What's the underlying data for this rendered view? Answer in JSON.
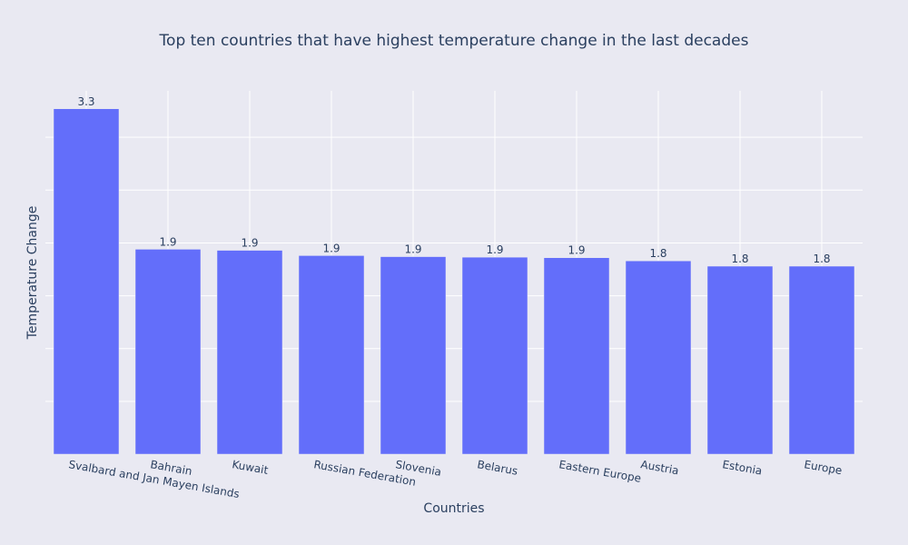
{
  "chart_data": {
    "type": "bar",
    "title": "Top ten countries that have highest temperature change in the last decades",
    "xlabel": "Countries",
    "ylabel": "Temperature Change",
    "categories": [
      "Svalbard and Jan Mayen Islands",
      "Bahrain",
      "Kuwait",
      "Russian Federation",
      "Slovenia",
      "Belarus",
      "Eastern Europe",
      "Austria",
      "Estonia",
      "Europe"
    ],
    "values": [
      3.27,
      1.94,
      1.93,
      1.88,
      1.87,
      1.865,
      1.86,
      1.83,
      1.78,
      1.78
    ],
    "data_labels": [
      "3.3",
      "1.9",
      "1.9",
      "1.9",
      "1.9",
      "1.9",
      "1.9",
      "1.8",
      "1.8",
      "1.8"
    ],
    "ylim": [
      0,
      3.44
    ],
    "grid": true,
    "bar_color": "#636efa",
    "background_color": "#e9e9f2"
  }
}
